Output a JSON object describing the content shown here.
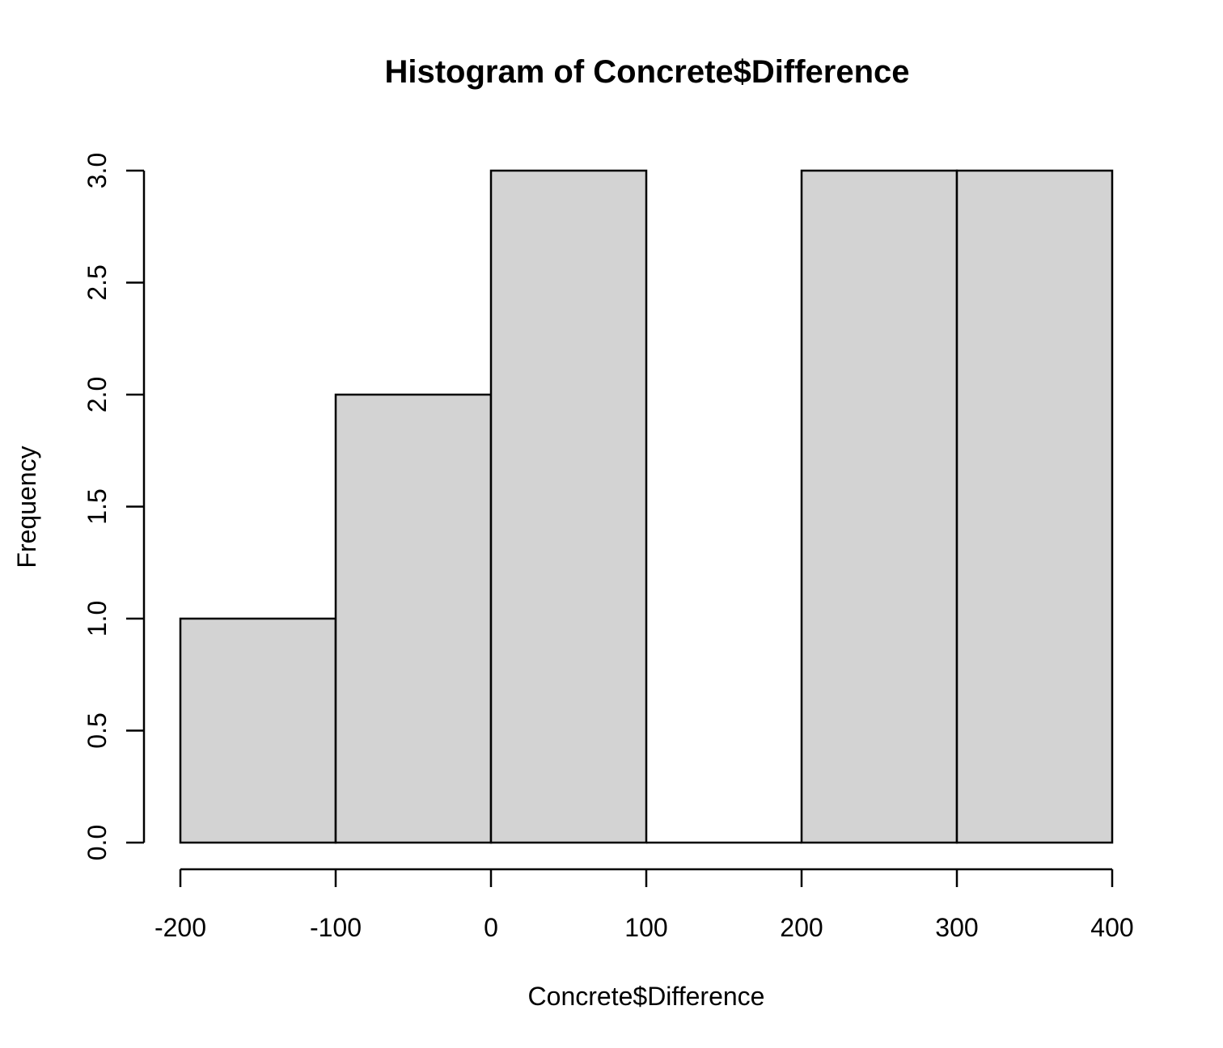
{
  "chart_data": {
    "type": "bar",
    "subtype": "histogram",
    "title": "Histogram of Concrete$Difference",
    "xlabel": "Concrete$Difference",
    "ylabel": "Frequency",
    "bins": [
      {
        "from": -200,
        "to": -100,
        "count": 1
      },
      {
        "from": -100,
        "to": 0,
        "count": 2
      },
      {
        "from": 0,
        "to": 100,
        "count": 3
      },
      {
        "from": 100,
        "to": 200,
        "count": 0
      },
      {
        "from": 200,
        "to": 300,
        "count": 3
      },
      {
        "from": 300,
        "to": 400,
        "count": 3
      }
    ],
    "xlim": [
      -200,
      400
    ],
    "ylim": [
      0,
      3
    ],
    "x_ticks": [
      -200,
      -100,
      0,
      100,
      200,
      300,
      400
    ],
    "x_tick_labels": [
      "-200",
      "-100",
      "0",
      "100",
      "200",
      "300",
      "400"
    ],
    "y_ticks": [
      0,
      0.5,
      1,
      1.5,
      2,
      2.5,
      3
    ],
    "y_tick_labels": [
      "0.0",
      "0.5",
      "1.0",
      "1.5",
      "2.0",
      "2.5",
      "3.0"
    ],
    "grid": false,
    "legend": false,
    "colors": {
      "bar_fill": "#d3d3d3",
      "bar_stroke": "#000000",
      "axis": "#000000"
    }
  }
}
